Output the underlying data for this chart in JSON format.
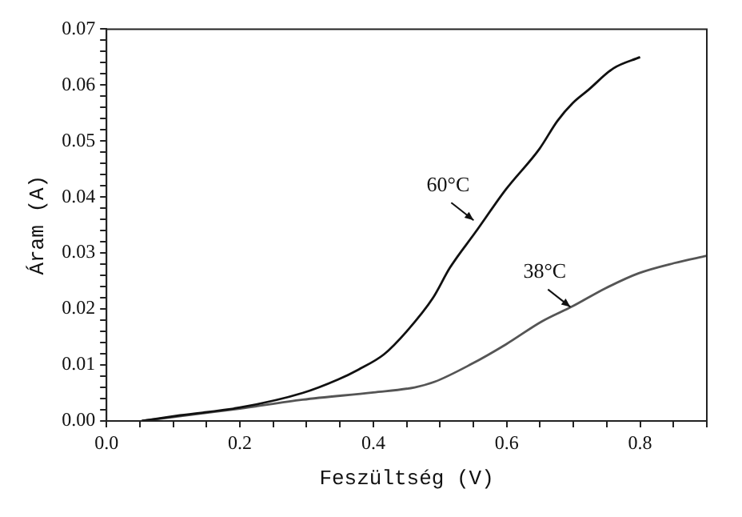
{
  "chart_data": {
    "type": "line",
    "xlabel": "Feszültség (V)",
    "ylabel": "Áram (A)",
    "series": [
      {
        "name": null,
        "color": "#111111",
        "x": [
          0.053,
          0.11,
          0.2,
          0.294,
          0.347,
          0.378,
          0.416,
          0.45,
          0.489,
          0.515,
          0.553,
          0.599,
          0.649,
          0.676,
          0.699,
          0.722,
          0.76,
          0.8
        ],
        "values": [
          0,
          0.001,
          0.0024,
          0.005,
          0.0074,
          0.0092,
          0.0119,
          0.016,
          0.0219,
          0.0274,
          0.0337,
          0.0414,
          0.0486,
          0.0536,
          0.0568,
          0.0591,
          0.063,
          0.065
        ]
      },
      {
        "name": null,
        "color": "#555555",
        "x": [
          0.053,
          0.2,
          0.294,
          0.4,
          0.462,
          0.492,
          0.546,
          0.599,
          0.653,
          0.699,
          0.748,
          0.798,
          0.851,
          0.9
        ],
        "values": [
          0,
          0.0022,
          0.0038,
          0.0051,
          0.006,
          0.007,
          0.0101,
          0.0137,
          0.0178,
          0.0205,
          0.0237,
          0.0264,
          0.0282,
          0.0295
        ]
      }
    ],
    "xlim": [
      0,
      0.9
    ],
    "xticks": [
      {
        "value": 0,
        "label": "0.0"
      },
      {
        "value": 0.05,
        "label": null
      },
      {
        "value": 0.1,
        "label": null
      },
      {
        "value": 0.15,
        "label": null
      },
      0.2,
      {
        "value": 0.25,
        "label": null
      },
      {
        "value": 0.3,
        "label": null
      },
      {
        "value": 0.35,
        "label": null
      },
      0.4,
      {
        "value": 0.45,
        "label": null
      },
      {
        "value": 0.5,
        "label": null
      },
      {
        "value": 0.55,
        "label": null
      },
      0.6,
      {
        "value": 0.65,
        "label": null
      },
      {
        "value": 0.7,
        "label": null
      },
      {
        "value": 0.75,
        "label": null
      },
      0.8,
      {
        "value": 0.85,
        "label": null
      },
      {
        "value": 0.9,
        "label": null
      }
    ],
    "ylim": [
      0,
      0.07
    ],
    "yticks": [
      {
        "value": 0,
        "label": "0.00"
      },
      {
        "value": 0.002,
        "label": null
      },
      {
        "value": 0.004,
        "label": null
      },
      {
        "value": 0.006,
        "label": null
      },
      {
        "value": 0.008,
        "label": null
      },
      0.01,
      {
        "value": 0.012,
        "label": null
      },
      {
        "value": 0.014,
        "label": null
      },
      {
        "value": 0.016,
        "label": null
      },
      {
        "value": 0.018,
        "label": null
      },
      0.02,
      {
        "value": 0.022,
        "label": null
      },
      {
        "value": 0.024,
        "label": null
      },
      {
        "value": 0.026,
        "label": null
      },
      {
        "value": 0.028,
        "label": null
      },
      0.03,
      {
        "value": 0.032,
        "label": null
      },
      {
        "value": 0.034,
        "label": null
      },
      {
        "value": 0.036,
        "label": null
      },
      {
        "value": 0.038,
        "label": null
      },
      0.04,
      {
        "value": 0.042,
        "label": null
      },
      {
        "value": 0.044,
        "label": null
      },
      {
        "value": 0.046,
        "label": null
      },
      {
        "value": 0.048,
        "label": null
      },
      0.05,
      {
        "value": 0.052,
        "label": null
      },
      {
        "value": 0.054,
        "label": null
      },
      {
        "value": 0.056,
        "label": null
      },
      {
        "value": 0.058,
        "label": null
      },
      0.06,
      {
        "value": 0.062,
        "label": null
      },
      {
        "value": 0.064,
        "label": null
      },
      {
        "value": 0.066,
        "label": null
      },
      {
        "value": 0.068,
        "label": null
      },
      0.07
    ],
    "annotations": [
      {
        "text": "60°C",
        "x": 0.56,
        "y": 0.035
      },
      {
        "text": "38°C",
        "x": 0.705,
        "y": 0.0195
      }
    ],
    "grid": false,
    "legend": false,
    "marker": "none",
    "line_style": "solid"
  }
}
